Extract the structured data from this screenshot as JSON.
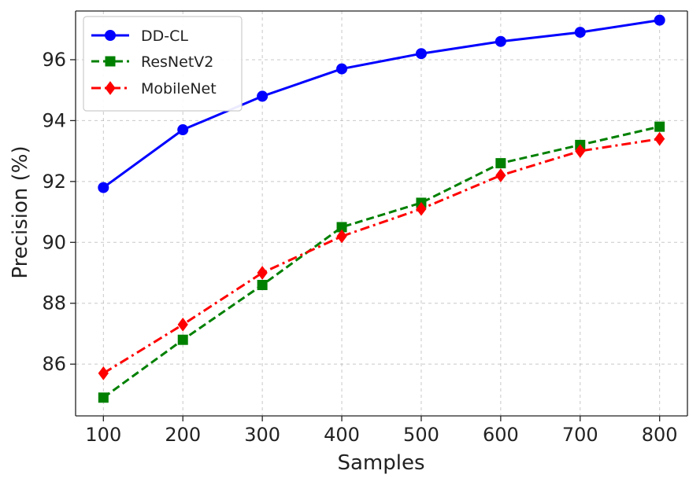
{
  "chart_data": {
    "type": "line",
    "title": "",
    "xlabel": "Samples",
    "ylabel": "Precision (%)",
    "x": [
      100,
      200,
      300,
      400,
      500,
      600,
      700,
      800
    ],
    "xticks": [
      "100",
      "200",
      "300",
      "400",
      "500",
      "600",
      "700",
      "800"
    ],
    "yticks": [
      "86",
      "88",
      "90",
      "92",
      "94",
      "96"
    ],
    "xlim": [
      65,
      835
    ],
    "ylim": [
      84.3,
      97.6
    ],
    "grid": true,
    "legend_position": "top-left",
    "series": [
      {
        "name": "DD-CL",
        "color": "#0000ff",
        "linestyle": "solid",
        "marker": "circle",
        "values": [
          91.8,
          93.7,
          94.8,
          95.7,
          96.2,
          96.6,
          96.9,
          97.3
        ]
      },
      {
        "name": "ResNetV2",
        "color": "#008000",
        "linestyle": "dashed",
        "marker": "square",
        "values": [
          84.9,
          86.8,
          88.6,
          90.5,
          91.3,
          92.6,
          93.2,
          93.8
        ]
      },
      {
        "name": "MobileNet",
        "color": "#ff0000",
        "linestyle": "dashdot",
        "marker": "diamond",
        "values": [
          85.7,
          87.3,
          89.0,
          90.2,
          91.1,
          92.2,
          93.0,
          93.4
        ]
      }
    ]
  }
}
